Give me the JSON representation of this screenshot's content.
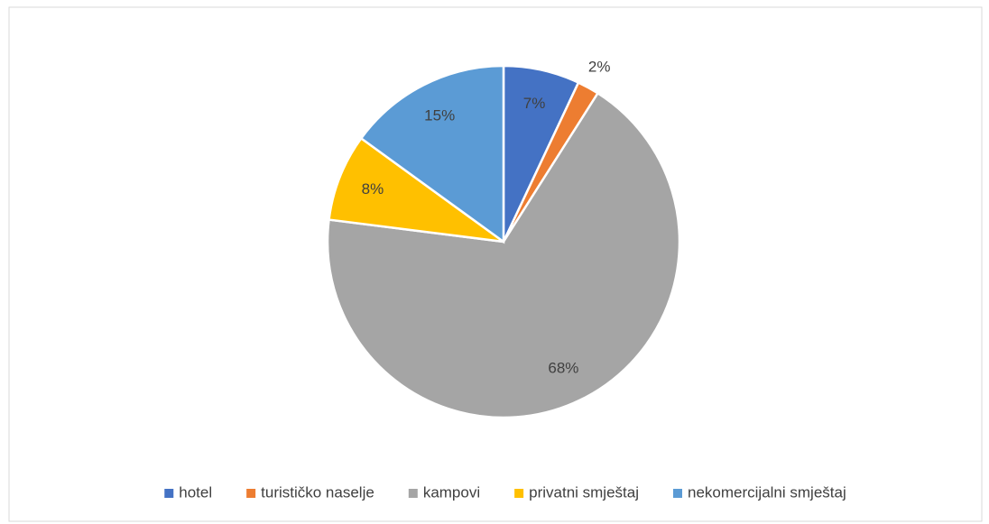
{
  "chart_data": {
    "type": "pie",
    "categories": [
      "hotel",
      "turističko naselje",
      "kampovi",
      "privatni smještaj",
      "nekomercijalni smještaj"
    ],
    "values": [
      7,
      2,
      68,
      8,
      15
    ],
    "value_labels": [
      "7%",
      "2%",
      "68%",
      "8%",
      "15%"
    ],
    "colors": [
      "#4472c4",
      "#ed7d31",
      "#a5a5a5",
      "#ffc000",
      "#5b9bd5"
    ],
    "legend": "bottom"
  }
}
